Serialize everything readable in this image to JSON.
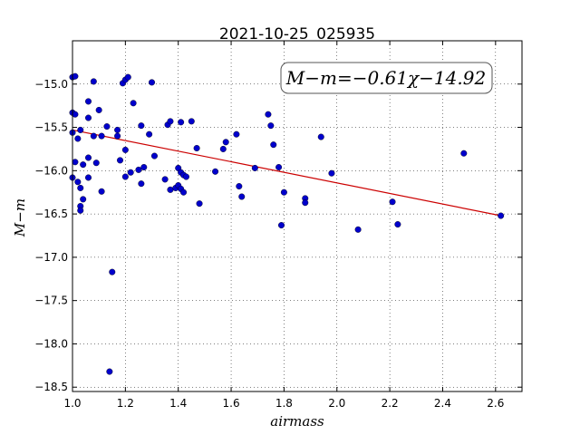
{
  "chart_data": {
    "type": "scatter",
    "title": "2021-10-25_025935",
    "xlabel": "airmass",
    "ylabel": "M−m",
    "xlim": [
      1.0,
      2.7
    ],
    "ylim": [
      -18.55,
      -14.5
    ],
    "xticks": [
      "1.0",
      "1.2",
      "1.4",
      "1.6",
      "1.8",
      "2.0",
      "2.2",
      "2.4",
      "2.6"
    ],
    "yticks": [
      "−15.0",
      "−15.5",
      "−16.0",
      "−16.5",
      "−17.0",
      "−17.5",
      "−18.0",
      "−18.5"
    ],
    "grid": true,
    "annotation": "M−m=−0.61χ−14.92",
    "fit_line": {
      "x": [
        1.0,
        2.62
      ],
      "y": [
        -15.53,
        -16.52
      ],
      "color": "#cc0000"
    },
    "point_color": "#0000cc",
    "points": [
      [
        1.0,
        -14.92
      ],
      [
        1.01,
        -14.91
      ],
      [
        1.0,
        -15.33
      ],
      [
        1.01,
        -15.35
      ],
      [
        1.0,
        -15.56
      ],
      [
        1.02,
        -15.63
      ],
      [
        1.03,
        -15.53
      ],
      [
        1.0,
        -16.08
      ],
      [
        1.01,
        -15.9
      ],
      [
        1.02,
        -16.13
      ],
      [
        1.04,
        -15.93
      ],
      [
        1.03,
        -16.2
      ],
      [
        1.04,
        -16.33
      ],
      [
        1.03,
        -16.41
      ],
      [
        1.03,
        -16.46
      ],
      [
        1.06,
        -15.2
      ],
      [
        1.06,
        -15.39
      ],
      [
        1.06,
        -15.85
      ],
      [
        1.06,
        -16.08
      ],
      [
        1.08,
        -14.97
      ],
      [
        1.08,
        -15.6
      ],
      [
        1.09,
        -15.91
      ],
      [
        1.1,
        -15.3
      ],
      [
        1.11,
        -15.6
      ],
      [
        1.11,
        -16.24
      ],
      [
        1.13,
        -15.49
      ],
      [
        1.14,
        -18.32
      ],
      [
        1.15,
        -17.17
      ],
      [
        1.17,
        -15.53
      ],
      [
        1.17,
        -15.6
      ],
      [
        1.18,
        -15.88
      ],
      [
        1.19,
        -14.99
      ],
      [
        1.2,
        -14.95
      ],
      [
        1.21,
        -14.92
      ],
      [
        1.2,
        -15.76
      ],
      [
        1.2,
        -16.07
      ],
      [
        1.22,
        -16.02
      ],
      [
        1.23,
        -15.22
      ],
      [
        1.25,
        -15.99
      ],
      [
        1.26,
        -15.48
      ],
      [
        1.26,
        -16.15
      ],
      [
        1.27,
        -15.96
      ],
      [
        1.29,
        -15.58
      ],
      [
        1.3,
        -14.98
      ],
      [
        1.31,
        -15.83
      ],
      [
        1.35,
        -16.1
      ],
      [
        1.36,
        -15.47
      ],
      [
        1.37,
        -15.43
      ],
      [
        1.37,
        -16.22
      ],
      [
        1.39,
        -16.2
      ],
      [
        1.4,
        -15.97
      ],
      [
        1.41,
        -16.02
      ],
      [
        1.4,
        -16.17
      ],
      [
        1.41,
        -16.21
      ],
      [
        1.42,
        -16.05
      ],
      [
        1.42,
        -16.25
      ],
      [
        1.43,
        -16.07
      ],
      [
        1.41,
        -15.44
      ],
      [
        1.45,
        -15.43
      ],
      [
        1.47,
        -15.74
      ],
      [
        1.48,
        -16.38
      ],
      [
        1.54,
        -16.01
      ],
      [
        1.57,
        -15.75
      ],
      [
        1.58,
        -15.67
      ],
      [
        1.62,
        -15.58
      ],
      [
        1.63,
        -16.18
      ],
      [
        1.64,
        -16.3
      ],
      [
        1.69,
        -15.97
      ],
      [
        1.74,
        -15.35
      ],
      [
        1.75,
        -15.48
      ],
      [
        1.76,
        -15.7
      ],
      [
        1.78,
        -15.96
      ],
      [
        1.79,
        -16.63
      ],
      [
        1.8,
        -16.25
      ],
      [
        1.88,
        -16.32
      ],
      [
        1.88,
        -16.37
      ],
      [
        1.94,
        -15.61
      ],
      [
        1.98,
        -16.03
      ],
      [
        2.08,
        -16.68
      ],
      [
        2.21,
        -16.36
      ],
      [
        2.23,
        -16.62
      ],
      [
        2.48,
        -15.8
      ],
      [
        2.62,
        -16.52
      ]
    ]
  }
}
